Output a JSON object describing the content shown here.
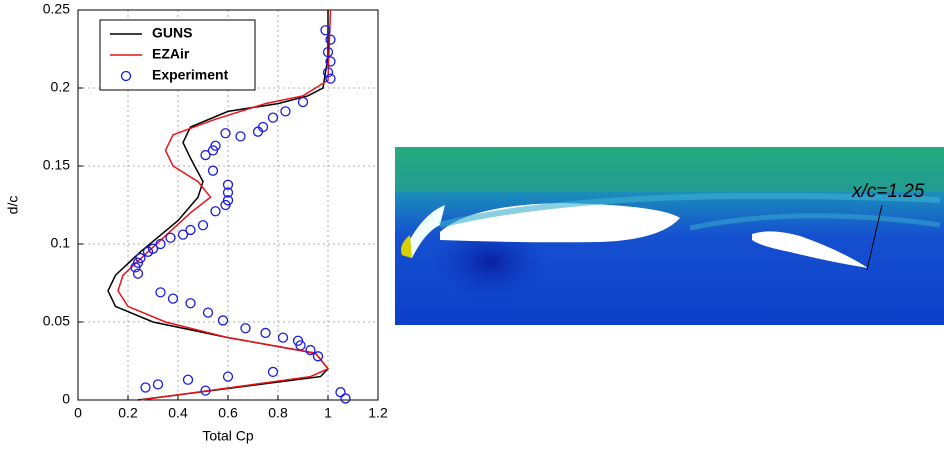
{
  "chart_data": {
    "type": "line",
    "xlabel": "Total Cp",
    "ylabel": "d/c",
    "xlim": [
      0,
      1.2
    ],
    "xticks": [
      0,
      0.2,
      0.4,
      0.6,
      0.8,
      1,
      1.2
    ],
    "ylim": [
      0,
      0.25
    ],
    "yticks": [
      0,
      0.05,
      0.1,
      0.15,
      0.2,
      0.25
    ],
    "grid": true,
    "legend": "upper left",
    "series": [
      {
        "name": "GUNS",
        "color": "#000000",
        "mark": "line",
        "x": [
          0.24,
          0.97,
          1.0,
          0.95,
          0.6,
          0.3,
          0.15,
          0.12,
          0.15,
          0.25,
          0.4,
          0.48,
          0.5,
          0.45,
          0.42,
          0.45,
          0.6,
          0.8,
          0.92,
          0.98,
          1.0,
          1.0
        ],
        "values": [
          0,
          0.015,
          0.02,
          0.03,
          0.04,
          0.05,
          0.06,
          0.07,
          0.08,
          0.095,
          0.115,
          0.13,
          0.14,
          0.155,
          0.165,
          0.175,
          0.185,
          0.19,
          0.195,
          0.2,
          0.22,
          0.25
        ]
      },
      {
        "name": "EZAir",
        "color": "#e8141a",
        "mark": "line",
        "x": [
          0.25,
          0.93,
          1.0,
          0.95,
          0.6,
          0.35,
          0.2,
          0.16,
          0.18,
          0.28,
          0.45,
          0.53,
          0.48,
          0.38,
          0.35,
          0.38,
          0.55,
          0.75,
          0.9,
          1.0,
          1.01
        ],
        "values": [
          0,
          0.015,
          0.02,
          0.03,
          0.04,
          0.05,
          0.06,
          0.07,
          0.08,
          0.095,
          0.12,
          0.13,
          0.14,
          0.15,
          0.16,
          0.17,
          0.18,
          0.19,
          0.195,
          0.205,
          0.25
        ]
      },
      {
        "name": "Experiment",
        "color": "#1a1ae6",
        "mark": "circle",
        "x": [
          0.99,
          1.01,
          1.0,
          1.01,
          1.0,
          1.01,
          0.9,
          0.83,
          0.78,
          0.74,
          0.72,
          0.65,
          0.59,
          0.55,
          0.54,
          0.51,
          0.54,
          0.6,
          0.6,
          0.6,
          0.59,
          0.55,
          0.5,
          0.45,
          0.42,
          0.37,
          0.33,
          0.3,
          0.28,
          0.25,
          0.24,
          0.23,
          0.24,
          0.33,
          0.38,
          0.45,
          0.52,
          0.58,
          0.67,
          0.75,
          0.82,
          0.88,
          0.89,
          0.93,
          0.96,
          0.78,
          0.6,
          0.44,
          0.32,
          0.27,
          0.51,
          1.05,
          1.07
        ],
        "values": [
          0.237,
          0.231,
          0.223,
          0.217,
          0.21,
          0.206,
          0.191,
          0.185,
          0.181,
          0.175,
          0.172,
          0.169,
          0.171,
          0.163,
          0.16,
          0.157,
          0.147,
          0.138,
          0.133,
          0.128,
          0.125,
          0.121,
          0.112,
          0.109,
          0.106,
          0.104,
          0.1,
          0.097,
          0.095,
          0.091,
          0.088,
          0.085,
          0.081,
          0.069,
          0.065,
          0.062,
          0.056,
          0.051,
          0.046,
          0.043,
          0.04,
          0.038,
          0.035,
          0.032,
          0.028,
          0.018,
          0.015,
          0.013,
          0.01,
          0.008,
          0.006,
          0.005,
          0.001
        ]
      }
    ]
  },
  "image": {
    "annotation": "x/c=1.25"
  }
}
